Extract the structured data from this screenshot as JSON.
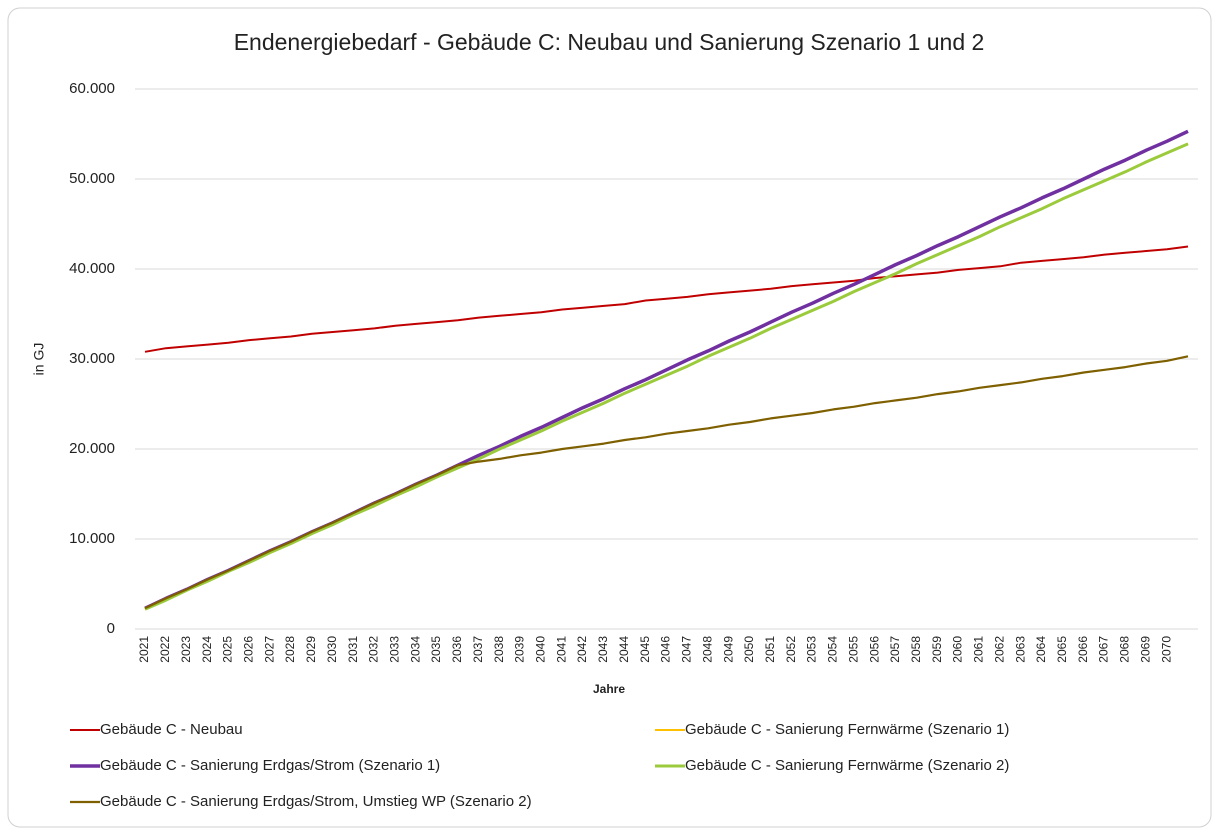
{
  "chart_data": {
    "type": "line",
    "title": "Endenergiebedarf - Gebäude C: Neubau und Sanierung Szenario 1 und 2",
    "ylabel": "in GJ",
    "xlabel": "Jahre",
    "categories": [
      "2021",
      "2022",
      "2023",
      "2024",
      "2025",
      "2026",
      "2027",
      "2028",
      "2029",
      "2030",
      "2031",
      "2032",
      "2033",
      "2034",
      "2035",
      "2036",
      "2037",
      "2038",
      "2039",
      "2040",
      "2041",
      "2042",
      "2043",
      "2044",
      "2045",
      "2046",
      "2047",
      "2048",
      "2049",
      "2050",
      "2051",
      "2052",
      "2053",
      "2054",
      "2055",
      "2056",
      "2057",
      "2058",
      "2059",
      "2060",
      "2061",
      "2062",
      "2063",
      "2064",
      "2065",
      "2066",
      "2067",
      "2068",
      "2069",
      "2070",
      null
    ],
    "ylim": [
      0,
      60000
    ],
    "yticks": [
      0,
      {
        "value": 10000,
        "label": "10.000"
      },
      {
        "value": 20000,
        "label": "20.000"
      },
      {
        "value": 30000,
        "label": "30.000"
      },
      {
        "value": 40000,
        "label": "40.000"
      },
      {
        "value": 50000,
        "label": "50.000"
      },
      {
        "value": 60000,
        "label": "60.000"
      }
    ],
    "grid": true,
    "series": [
      {
        "name": "Gebäude C - Neubau",
        "color": "#c00000",
        "values": [
          30800,
          31200,
          31400,
          31600,
          31800,
          32100,
          32300,
          32500,
          32800,
          33000,
          33200,
          33400,
          33700,
          33900,
          34100,
          34300,
          34600,
          34800,
          35000,
          35200,
          35500,
          35700,
          35900,
          36100,
          36500,
          36700,
          36900,
          37200,
          37400,
          37600,
          37800,
          38100,
          38300,
          38500,
          38700,
          39000,
          39200,
          39400,
          39600,
          39900,
          40100,
          40300,
          40700,
          40900,
          41100,
          41300,
          41600,
          41800,
          42000,
          42200,
          42500
        ]
      },
      {
        "name": "Gebäude C - Sanierung Fernwärme (Szenario 1)",
        "color": "#ffc000",
        "values": [
          2200,
          3200,
          4300,
          5300,
          6400,
          7400,
          8500,
          9500,
          10600,
          11600,
          12700,
          13700,
          14800,
          15800,
          16900,
          17900,
          18900,
          20000,
          21000,
          22000,
          23100,
          24100,
          25100,
          26200,
          27200,
          28200,
          29200,
          30300,
          31300,
          32300,
          33400,
          34400,
          35400,
          36400,
          37500,
          38500,
          39500,
          40600,
          41600,
          42600,
          43600,
          44700,
          45700,
          46700,
          47800,
          48800,
          49800,
          50800,
          51900,
          52900,
          53900
        ]
      },
      {
        "name": "Gebäude C - Sanierung Erdgas/Strom (Szenario 1)",
        "color": "#7030a0",
        "values": [
          2300,
          3400,
          4400,
          5500,
          6500,
          7600,
          8700,
          9700,
          10800,
          11800,
          12900,
          14000,
          15000,
          16100,
          17100,
          18200,
          19300,
          20300,
          21400,
          22400,
          23500,
          24600,
          25600,
          26700,
          27700,
          28800,
          29900,
          30900,
          32000,
          33000,
          34100,
          35200,
          36200,
          37300,
          38300,
          39400,
          40500,
          41500,
          42600,
          43600,
          44700,
          45800,
          46800,
          47900,
          48900,
          50000,
          51100,
          52100,
          53200,
          54200,
          55300
        ]
      },
      {
        "name": "Gebäude C - Sanierung Fernwärme (Szenario 2)",
        "color": "#9bcb3c",
        "values": [
          2200,
          3200,
          4300,
          5300,
          6400,
          7400,
          8500,
          9500,
          10600,
          11600,
          12700,
          13700,
          14800,
          15800,
          16900,
          17900,
          18900,
          20000,
          21000,
          22000,
          23100,
          24100,
          25100,
          26200,
          27200,
          28200,
          29200,
          30300,
          31300,
          32300,
          33400,
          34400,
          35400,
          36400,
          37500,
          38500,
          39500,
          40600,
          41600,
          42600,
          43600,
          44700,
          45700,
          46700,
          47800,
          48800,
          49800,
          50800,
          51900,
          52900,
          53900
        ]
      },
      {
        "name": "Gebäude C - Sanierung Erdgas/Strom, Umstieg WP (Szenario 2)",
        "color": "#7f6000",
        "values": [
          2300,
          3400,
          4400,
          5500,
          6500,
          7600,
          8700,
          9700,
          10800,
          11800,
          12900,
          14000,
          15000,
          16100,
          17100,
          18200,
          18600,
          18900,
          19300,
          19600,
          20000,
          20300,
          20600,
          21000,
          21300,
          21700,
          22000,
          22300,
          22700,
          23000,
          23400,
          23700,
          24000,
          24400,
          24700,
          25100,
          25400,
          25700,
          26100,
          26400,
          26800,
          27100,
          27400,
          27800,
          28100,
          28500,
          28800,
          29100,
          29500,
          29800,
          30300
        ]
      }
    ]
  }
}
